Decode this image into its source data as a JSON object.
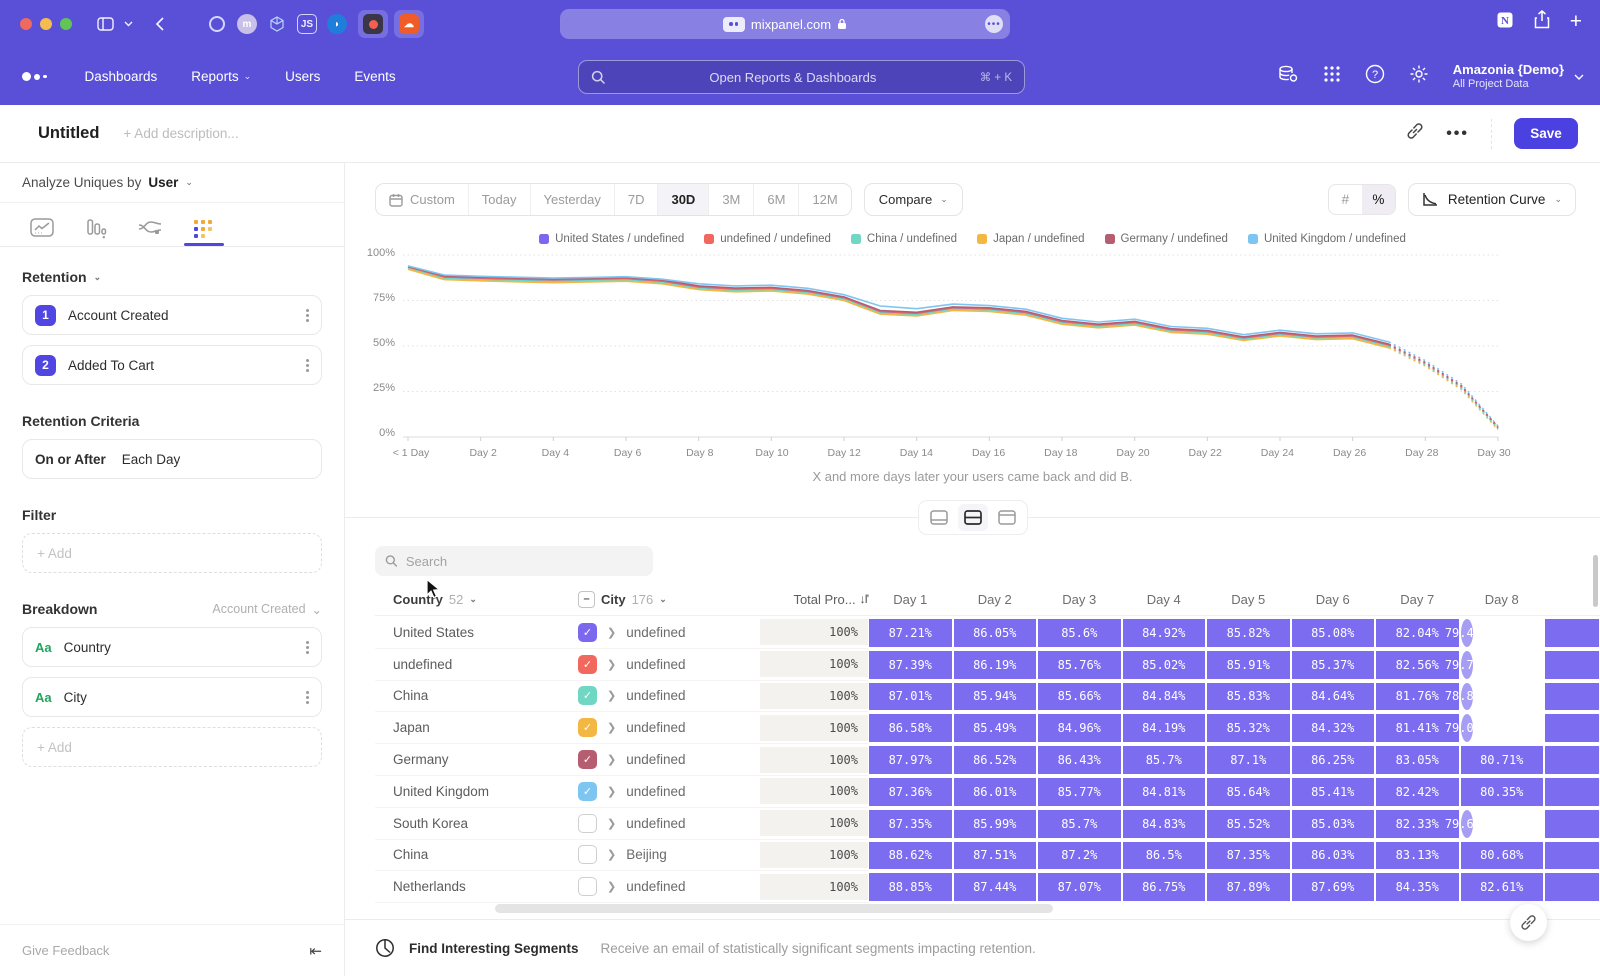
{
  "browser": {
    "url": "mixpanel.com",
    "toolbar_icons": [
      "sidebar-toggle-icon",
      "chevron-down-icon",
      "back-icon",
      "ring-favicon",
      "avatar-favicon",
      "cube-favicon",
      "js-favicon",
      "bird-favicon",
      "recorder-favicon",
      "soundcloud-favicon",
      "notion-icon",
      "share-icon",
      "new-tab-icon"
    ]
  },
  "nav": {
    "items": [
      {
        "label": "Dashboards",
        "chevron": false
      },
      {
        "label": "Reports",
        "chevron": true
      },
      {
        "label": "Users",
        "chevron": false
      },
      {
        "label": "Events",
        "chevron": false
      }
    ],
    "search_placeholder": "Open Reports & Dashboards",
    "search_shortcut": "⌘ + K",
    "project_name": "Amazonia {Demo}",
    "project_scope": "All Project Data",
    "right_icons": [
      "data-management-icon",
      "apps-grid-icon",
      "help-icon",
      "settings-icon"
    ]
  },
  "header": {
    "title": "Untitled",
    "description_placeholder": "+ Add description...",
    "save_label": "Save"
  },
  "sidebar": {
    "analyze_label": "Analyze Uniques by",
    "analyze_value": "User",
    "tab_icons": [
      "insights-tab-icon",
      "funnels-tab-icon",
      "flows-tab-icon",
      "retention-tab-icon"
    ],
    "active_tab_index": 3,
    "section_label": "Retention",
    "steps": [
      {
        "num": "1",
        "label": "Account Created"
      },
      {
        "num": "2",
        "label": "Added To Cart"
      }
    ],
    "criteria_label": "Retention Criteria",
    "criteria_op": "On or After",
    "criteria_val": "Each Day",
    "filter_label": "Filter",
    "filter_add": "+ Add",
    "breakdown_label": "Breakdown",
    "breakdown_scope": "Account Created",
    "breakdowns": [
      {
        "type": "Aa",
        "label": "Country"
      },
      {
        "type": "Aa",
        "label": "City"
      }
    ],
    "breakdown_add": "+ Add",
    "give_feedback": "Give Feedback"
  },
  "controls": {
    "ranges": [
      "Custom",
      "Today",
      "Yesterday",
      "7D",
      "30D",
      "3M",
      "6M",
      "12M"
    ],
    "active_range": "30D",
    "compare_label": "Compare",
    "value_modes": [
      "#",
      "%"
    ],
    "active_mode": "%",
    "view_label": "Retention Curve"
  },
  "chart_data": {
    "type": "line",
    "title": "",
    "xlabel": "",
    "ylabel": "",
    "ylim": [
      0,
      100
    ],
    "grid": true,
    "legend_position": "top",
    "caption": "X and more days later your users came back and did B.",
    "y_tick_labels": [
      "100%",
      "75%",
      "50%",
      "25%",
      "0%"
    ],
    "x_tick_labels": [
      "< 1 Day",
      "Day 2",
      "Day 4",
      "Day 6",
      "Day 8",
      "Day 10",
      "Day 12",
      "Day 14",
      "Day 16",
      "Day 18",
      "Day 20",
      "Day 22",
      "Day 24",
      "Day 26",
      "Day 28",
      "Day 30"
    ],
    "x": [
      0,
      1,
      2,
      3,
      4,
      5,
      6,
      7,
      8,
      9,
      10,
      11,
      12,
      13,
      14,
      15,
      16,
      17,
      18,
      19,
      20,
      21,
      22,
      23,
      24,
      25,
      26,
      27,
      28,
      29,
      30
    ],
    "dotted_from_index": 27,
    "series": [
      {
        "name": "United States / undefined",
        "color": "#7b68ee",
        "values": [
          93.2,
          87.8,
          87.1,
          86.6,
          86.1,
          86.5,
          86.9,
          85.5,
          82.3,
          81.1,
          81.5,
          79.8,
          76.3,
          68.8,
          67.8,
          70.8,
          70.3,
          68.3,
          63.3,
          61.3,
          62.8,
          58.8,
          57.8,
          54.3,
          56.8,
          54.8,
          55.3,
          50.3,
          40.3,
          27.3,
          5.2
        ]
      },
      {
        "name": "undefined / undefined",
        "color": "#f0685e",
        "values": [
          93.4,
          88.1,
          87.4,
          86.9,
          86.4,
          86.8,
          87.2,
          85.8,
          82.6,
          81.4,
          81.8,
          80.1,
          76.6,
          69.1,
          68.1,
          71.1,
          70.6,
          68.6,
          63.6,
          61.6,
          63.1,
          59.1,
          58.1,
          54.6,
          57.1,
          55.1,
          55.6,
          50.6,
          40.6,
          27.6,
          4.8
        ]
      },
      {
        "name": "China / undefined",
        "color": "#6fd7c3",
        "values": [
          92.6,
          87.1,
          86.4,
          85.9,
          85.4,
          85.8,
          86.2,
          84.8,
          81.6,
          80.4,
          80.8,
          79.1,
          75.6,
          68.1,
          67.1,
          70.1,
          69.6,
          67.6,
          62.6,
          60.6,
          62.1,
          58.1,
          57.1,
          53.6,
          56.1,
          54.1,
          54.6,
          49.6,
          39.6,
          26.6,
          4.5
        ]
      },
      {
        "name": "Japan / undefined",
        "color": "#f3b843",
        "values": [
          92.2,
          86.5,
          85.8,
          85.3,
          84.8,
          85.2,
          85.6,
          84.2,
          81.0,
          79.8,
          80.2,
          78.5,
          75.0,
          67.5,
          66.5,
          69.5,
          69.0,
          67.0,
          62.0,
          60.0,
          61.5,
          57.5,
          56.5,
          53.0,
          55.5,
          53.5,
          54.0,
          49.0,
          39.0,
          26.0,
          4.0
        ]
      },
      {
        "name": "Germany / undefined",
        "color": "#b75d72",
        "values": [
          93.8,
          88.5,
          87.8,
          87.3,
          86.8,
          87.2,
          87.6,
          86.2,
          83.0,
          81.8,
          82.2,
          80.5,
          77.0,
          69.5,
          68.5,
          71.5,
          71.0,
          69.0,
          64.0,
          62.0,
          63.5,
          59.5,
          58.5,
          55.0,
          57.5,
          55.5,
          56.0,
          51.0,
          41.0,
          28.0,
          5.5
        ]
      },
      {
        "name": "United Kingdom / undefined",
        "color": "#7ec6f2",
        "values": [
          94.0,
          89.0,
          88.3,
          87.8,
          87.3,
          87.7,
          88.1,
          86.7,
          84.2,
          83.0,
          83.4,
          81.7,
          78.2,
          72.0,
          70.5,
          73.0,
          72.2,
          70.2,
          65.2,
          63.2,
          64.7,
          60.7,
          59.7,
          56.2,
          58.7,
          56.7,
          57.2,
          52.2,
          42.0,
          29.0,
          6.0
        ]
      }
    ]
  },
  "table": {
    "search_placeholder": "Search",
    "col_country": "Country",
    "col_country_count": "52",
    "col_city": "City",
    "col_city_count": "176",
    "col_total": "Total Pro...",
    "day_columns": [
      "Day 1",
      "Day 2",
      "Day 3",
      "Day 4",
      "Day 5",
      "Day 6",
      "Day 7",
      "Day 8"
    ],
    "rows": [
      {
        "country": "United States",
        "checked": true,
        "color": "#7b68ee",
        "city": "undefined",
        "total": "100%",
        "days": [
          "87.21%",
          "86.05%",
          "85.6%",
          "84.92%",
          "85.82%",
          "85.08%",
          "82.04%",
          "79.49%"
        ]
      },
      {
        "country": "undefined",
        "checked": true,
        "color": "#f0685e",
        "city": "undefined",
        "total": "100%",
        "days": [
          "87.39%",
          "86.19%",
          "85.76%",
          "85.02%",
          "85.91%",
          "85.37%",
          "82.56%",
          "79.77%"
        ]
      },
      {
        "country": "China",
        "checked": true,
        "color": "#6fd7c3",
        "city": "undefined",
        "total": "100%",
        "days": [
          "87.01%",
          "85.94%",
          "85.66%",
          "84.84%",
          "85.83%",
          "84.64%",
          "81.76%",
          "78.87%"
        ]
      },
      {
        "country": "Japan",
        "checked": true,
        "color": "#f3b843",
        "city": "undefined",
        "total": "100%",
        "days": [
          "86.58%",
          "85.49%",
          "84.96%",
          "84.19%",
          "85.32%",
          "84.32%",
          "81.41%",
          "79.05%"
        ]
      },
      {
        "country": "Germany",
        "checked": true,
        "color": "#b75d72",
        "city": "undefined",
        "total": "100%",
        "days": [
          "87.97%",
          "86.52%",
          "86.43%",
          "85.7%",
          "87.1%",
          "86.25%",
          "83.05%",
          "80.71%"
        ]
      },
      {
        "country": "United Kingdom",
        "checked": true,
        "color": "#7ec6f2",
        "city": "undefined",
        "total": "100%",
        "days": [
          "87.36%",
          "86.01%",
          "85.77%",
          "84.81%",
          "85.64%",
          "85.41%",
          "82.42%",
          "80.35%"
        ]
      },
      {
        "country": "South Korea",
        "checked": false,
        "color": null,
        "city": "undefined",
        "total": "100%",
        "days": [
          "87.35%",
          "85.99%",
          "85.7%",
          "84.83%",
          "85.52%",
          "85.03%",
          "82.33%",
          "79.62%"
        ]
      },
      {
        "country": "China",
        "checked": false,
        "color": null,
        "city": "Beijing",
        "total": "100%",
        "days": [
          "88.62%",
          "87.51%",
          "87.2%",
          "86.5%",
          "87.35%",
          "86.03%",
          "83.13%",
          "80.68%"
        ]
      },
      {
        "country": "Netherlands",
        "checked": false,
        "color": null,
        "city": "undefined",
        "total": "100%",
        "days": [
          "88.85%",
          "87.44%",
          "87.07%",
          "86.75%",
          "87.89%",
          "87.69%",
          "84.35%",
          "82.61%"
        ]
      }
    ]
  },
  "footer": {
    "title": "Find Interesting Segments",
    "description": "Receive an email of statistically significant segments impacting retention."
  },
  "colors": {
    "chrome_purple": "#5a50d8",
    "accent_purple": "#4b41e0",
    "cell_purple": "#7b6cf0",
    "cell_purple_light": "#a89df5"
  }
}
